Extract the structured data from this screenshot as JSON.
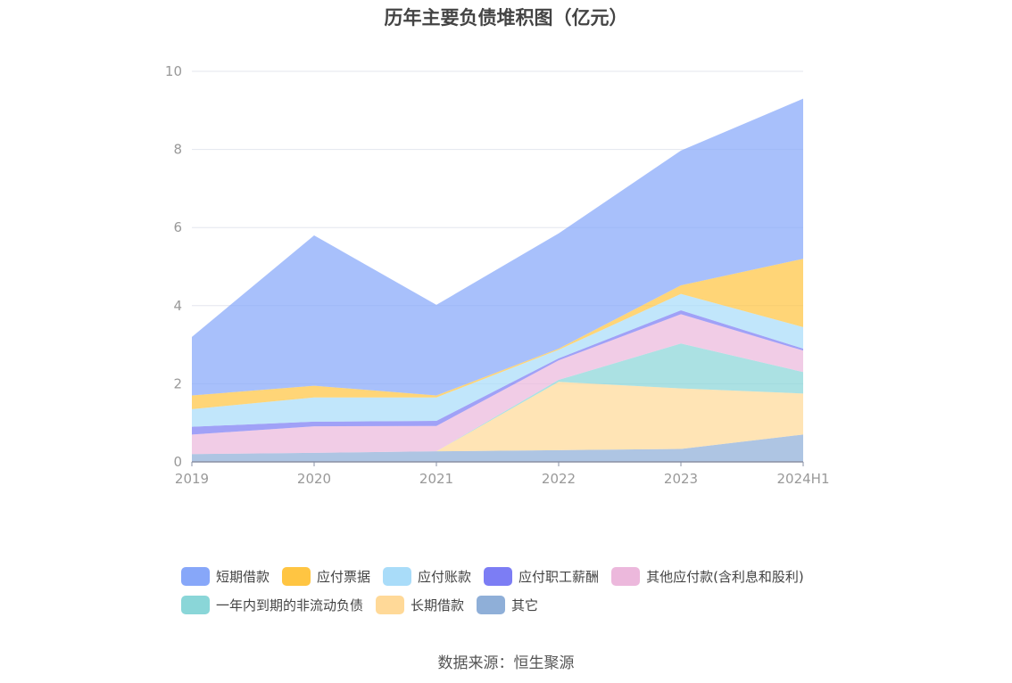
{
  "chart_data": {
    "type": "area",
    "stacked": true,
    "title": "历年主要负债堆积图（亿元）",
    "categories": [
      "2019",
      "2020",
      "2021",
      "2022",
      "2023",
      "2024H1"
    ],
    "ylim": [
      0,
      10
    ],
    "yticks": [
      "0",
      "2",
      "4",
      "6",
      "8",
      "10"
    ],
    "grid": true,
    "legend_position": "bottom",
    "series": [
      {
        "name": "其它",
        "color": "#8fafd8",
        "values": [
          0.2,
          0.23,
          0.27,
          0.3,
          0.33,
          0.7
        ]
      },
      {
        "name": "长期借款",
        "color": "#ffd998",
        "values": [
          0.0,
          0.0,
          0.0,
          1.75,
          1.55,
          1.05
        ]
      },
      {
        "name": "一年内到期的非流动负债",
        "color": "#8ad6d8",
        "values": [
          0.0,
          0.0,
          0.0,
          0.05,
          1.15,
          0.55
        ]
      },
      {
        "name": "其他应付款(含利息和股利)",
        "color": "#ecb8dc",
        "values": [
          0.5,
          0.68,
          0.65,
          0.5,
          0.75,
          0.55
        ]
      },
      {
        "name": "应付职工薪酬",
        "color": "#7c7df4",
        "values": [
          0.2,
          0.12,
          0.13,
          0.05,
          0.1,
          0.05
        ]
      },
      {
        "name": "应付账款",
        "color": "#a9dcf9",
        "values": [
          0.45,
          0.62,
          0.6,
          0.22,
          0.42,
          0.55
        ]
      },
      {
        "name": "应付票据",
        "color": "#ffc542",
        "values": [
          0.35,
          0.3,
          0.05,
          0.03,
          0.22,
          1.75
        ]
      },
      {
        "name": "短期借款",
        "color": "#87a7f9",
        "values": [
          1.5,
          3.85,
          2.32,
          2.95,
          3.45,
          4.1
        ]
      }
    ]
  },
  "legend": {
    "row1": [
      {
        "label": "短期借款",
        "color": "#87a7f9"
      },
      {
        "label": "应付票据",
        "color": "#ffc542"
      },
      {
        "label": "应付账款",
        "color": "#a9dcf9"
      },
      {
        "label": "应付职工薪酬",
        "color": "#7c7df4"
      },
      {
        "label": "其他应付款(含利息和股利)",
        "color": "#ecb8dc"
      }
    ],
    "row2": [
      {
        "label": "一年内到期的非流动负债",
        "color": "#8ad6d8"
      },
      {
        "label": "长期借款",
        "color": "#ffd998"
      },
      {
        "label": "其它",
        "color": "#8fafd8"
      }
    ]
  },
  "source": "数据来源：恒生聚源"
}
